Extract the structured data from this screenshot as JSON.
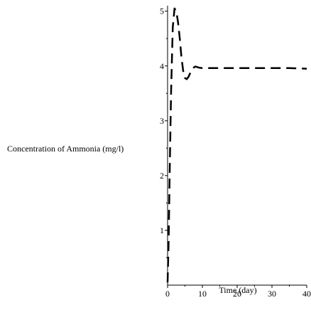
{
  "chart_data": {
    "type": "line",
    "title": "",
    "xlabel": "Time (day)",
    "ylabel": "Concentration of Ammonia (mg/l)",
    "xlim": [
      0,
      40
    ],
    "ylim": [
      0,
      5.1
    ],
    "x_ticks": [
      0,
      10,
      20,
      30,
      40
    ],
    "x_tick_labels": [
      "0",
      "10",
      "20",
      "30",
      "40"
    ],
    "y_ticks": [
      1,
      2,
      3,
      4,
      5
    ],
    "y_tick_labels": [
      "1",
      "2",
      "3",
      "4",
      "5"
    ],
    "grid": false,
    "line_style": "dashed",
    "line_color": "#000000",
    "series": [
      {
        "x": [
          0,
          0.3,
          0.6,
          1.0,
          1.5,
          2.0,
          2.5,
          3.0,
          3.5,
          4.0,
          4.5,
          5.0,
          5.5,
          6.0,
          6.5,
          7.0,
          7.5,
          8.0,
          8.5,
          9.0,
          10.0,
          12.0,
          15.0,
          20.0,
          25.0,
          30.0,
          35.0,
          40.0
        ],
        "y": [
          0.05,
          0.8,
          2.0,
          3.5,
          4.7,
          5.05,
          5.0,
          4.8,
          4.5,
          4.15,
          3.9,
          3.78,
          3.76,
          3.8,
          3.87,
          3.93,
          3.97,
          3.99,
          3.98,
          3.97,
          3.96,
          3.96,
          3.96,
          3.96,
          3.96,
          3.96,
          3.96,
          3.95
        ]
      }
    ]
  }
}
